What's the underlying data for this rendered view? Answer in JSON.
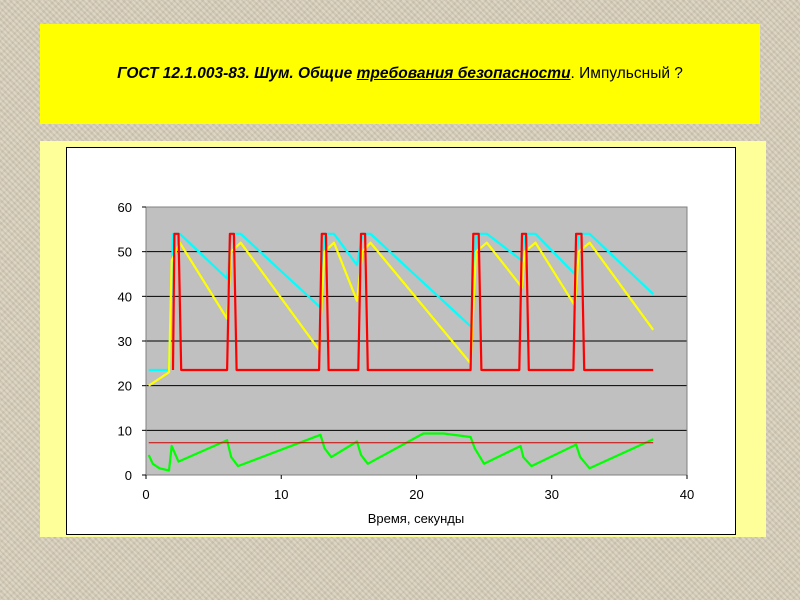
{
  "header": {
    "title_bold": "ГОСТ 12.1.003-83. Шум. Общие ",
    "title_bold_underlined": "требования безопасности",
    "title_rest": ". Импульсный ?"
  },
  "chart_data": {
    "type": "line",
    "xlabel": "Время, секунды",
    "ylabel": "",
    "xlim": [
      0,
      40
    ],
    "ylim": [
      0,
      60
    ],
    "xticks": [
      0,
      10,
      20,
      30,
      40
    ],
    "yticks": [
      0,
      10,
      20,
      30,
      40,
      50,
      60
    ],
    "grid": "horizontal",
    "plot_background": "#c0c0c0",
    "legend": "none",
    "series": [
      {
        "color": "#00ffff",
        "x": [
          0.2,
          1.7,
          2.0,
          2.5,
          6.0,
          6.3,
          7.0,
          12.9,
          13.2,
          13.9,
          15.6,
          16.0,
          16.6,
          24.1,
          24.4,
          25.2,
          27.8,
          28.0,
          28.8,
          31.7,
          32.0,
          32.8,
          37.5
        ],
        "y": [
          23.5,
          23.5,
          54.0,
          54.0,
          44.0,
          54.0,
          54.0,
          37.5,
          54.0,
          54.0,
          47.0,
          54.0,
          54.0,
          33.0,
          54.0,
          54.0,
          48.0,
          54.0,
          54.0,
          45.0,
          54.0,
          54.0,
          40.5
        ]
      },
      {
        "color": "#ffff00",
        "x": [
          0.2,
          1.7,
          1.9,
          2.5,
          6.0,
          6.3,
          7.0,
          12.8,
          13.2,
          13.9,
          15.6,
          16.0,
          16.6,
          24.0,
          24.4,
          25.2,
          27.8,
          28.0,
          28.8,
          31.7,
          32.0,
          32.8,
          37.5
        ],
        "y": [
          20.0,
          23.0,
          48.0,
          52.0,
          35.0,
          50.0,
          52.0,
          28.0,
          50.0,
          52.0,
          39.0,
          50.0,
          52.0,
          25.0,
          50.0,
          52.0,
          42.0,
          50.0,
          52.0,
          38.0,
          50.0,
          52.0,
          32.5
        ]
      },
      {
        "color": "#ff0000",
        "x": [
          2.0,
          2.1,
          2.4,
          2.6,
          6.0,
          6.2,
          6.5,
          6.7,
          12.8,
          13.0,
          13.3,
          13.5,
          15.7,
          15.9,
          16.2,
          16.4,
          24.0,
          24.2,
          24.6,
          24.8,
          27.6,
          27.8,
          28.1,
          28.3,
          31.6,
          31.8,
          32.2,
          32.4,
          37.5
        ],
        "y": [
          23.5,
          54.0,
          54.0,
          23.5,
          23.5,
          54.0,
          54.0,
          23.5,
          23.5,
          54.0,
          54.0,
          23.5,
          23.5,
          54.0,
          54.0,
          23.5,
          23.5,
          54.0,
          54.0,
          23.5,
          23.5,
          54.0,
          54.0,
          23.5,
          23.5,
          54.0,
          54.0,
          23.5,
          23.5
        ]
      },
      {
        "color": "#00ff00",
        "x": [
          0.2,
          0.5,
          1.0,
          1.7,
          1.9,
          2.4,
          6.0,
          6.3,
          6.8,
          12.9,
          13.2,
          13.7,
          15.6,
          15.9,
          16.4,
          20.5,
          22.0,
          24.0,
          24.3,
          25.0,
          27.7,
          27.9,
          28.5,
          31.8,
          32.1,
          32.8,
          37.5
        ],
        "y": [
          4.5,
          2.5,
          1.5,
          1.0,
          6.5,
          3.0,
          7.8,
          4.0,
          2.0,
          9.0,
          6.0,
          4.0,
          7.5,
          4.5,
          2.5,
          9.3,
          9.3,
          8.5,
          6.0,
          2.5,
          6.5,
          4.0,
          2.0,
          6.8,
          4.0,
          1.5,
          8.0
        ]
      },
      {
        "color": "#cc0000",
        "x": [
          0.2,
          37.5
        ],
        "y": [
          7.2,
          7.2
        ]
      }
    ]
  }
}
